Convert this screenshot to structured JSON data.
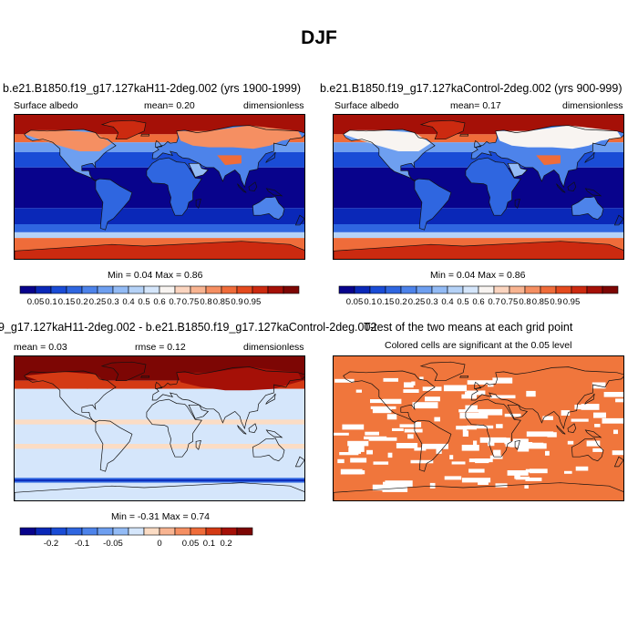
{
  "figure_title": "DJF",
  "colors": {
    "albedo_scale": [
      "#08038c",
      "#0a28b8",
      "#1a4cd6",
      "#2f66e0",
      "#4d83ea",
      "#6e9ff0",
      "#93bbf5",
      "#b5d2f7",
      "#d5e6fb",
      "#f8f4f1",
      "#fbd5c0",
      "#f8b491",
      "#f58f62",
      "#ef6c3a",
      "#e44a1e",
      "#cc2a10",
      "#a51007",
      "#7d0604"
    ],
    "diff_scale": [
      "#08038c",
      "#0a28b8",
      "#1a4cd6",
      "#2f66e0",
      "#4d83ea",
      "#6e9ff0",
      "#93bbf5",
      "#d5e6fb",
      "#fbdcc4",
      "#f8b491",
      "#f58f62",
      "#ef6c3a",
      "#d43a14",
      "#a51007",
      "#7d0604"
    ],
    "sig_fill": "#f0763c"
  },
  "panels": [
    {
      "title": "b.e21.B1850.f19_g17.127kaH11-2deg.002 (yrs 1900-1999)",
      "left_label": "Surface albedo",
      "mid_label": "mean=  0.20",
      "right_label": "dimensionless",
      "minmax": "Min =   0.04 Max =   0.86"
    },
    {
      "title": "b.e21.B1850.f19_g17.127kaControl-2deg.002 (yrs 900-999)",
      "left_label": "Surface albedo",
      "mid_label": "mean=   0.17",
      "right_label": "dimensionless",
      "minmax": "Min =   0.04 Max =   0.86"
    },
    {
      "title": "9_g17.127kaH11-2deg.002 - b.e21.B1850.f19_g17.127kaControl-2deg.002",
      "left_label": "mean =   0.03",
      "mid_label": "rmse =   0.12",
      "right_label": "dimensionless",
      "minmax": "Min =  -0.31 Max =   0.74"
    },
    {
      "title": "T-test of the two means at each grid point",
      "subtitle": "Colored cells are significant at the 0.05 level"
    }
  ],
  "chart_data": [
    {
      "type": "heatmap",
      "title": "b.e21.B1850.f19_g17.127kaH11-2deg.002 (yrs 1900-1999)",
      "variable": "Surface albedo",
      "units": "dimensionless",
      "mean": 0.2,
      "min": 0.04,
      "max": 0.86,
      "colorbar_levels": [
        "0.05",
        "0.1",
        "0.15",
        "0.2",
        "0.25",
        "0.3",
        "0.4",
        "0.5",
        "0.6",
        "0.7",
        "0.75",
        "0.8",
        "0.85",
        "0.9",
        "0.95"
      ]
    },
    {
      "type": "heatmap",
      "title": "b.e21.B1850.f19_g17.127kaControl-2deg.002 (yrs 900-999)",
      "variable": "Surface albedo",
      "units": "dimensionless",
      "mean": 0.17,
      "min": 0.04,
      "max": 0.86,
      "colorbar_levels": [
        "0.05",
        "0.1",
        "0.15",
        "0.2",
        "0.25",
        "0.3",
        "0.4",
        "0.5",
        "0.6",
        "0.7",
        "0.75",
        "0.8",
        "0.85",
        "0.9",
        "0.95"
      ]
    },
    {
      "type": "heatmap",
      "title": "9_g17.127kaH11-2deg.002 - b.e21.B1850.f19_g17.127kaControl-2deg.002",
      "units": "dimensionless",
      "mean": 0.03,
      "rmse": 0.12,
      "min": -0.31,
      "max": 0.74,
      "colorbar_levels": [
        "-0.2",
        "-0.1",
        "-0.05",
        "0",
        "0.05",
        "0.1",
        "0.2"
      ]
    },
    {
      "type": "heatmap",
      "title": "T-test of the two means at each grid point",
      "note": "Colored cells are significant at the 0.05 level"
    }
  ]
}
